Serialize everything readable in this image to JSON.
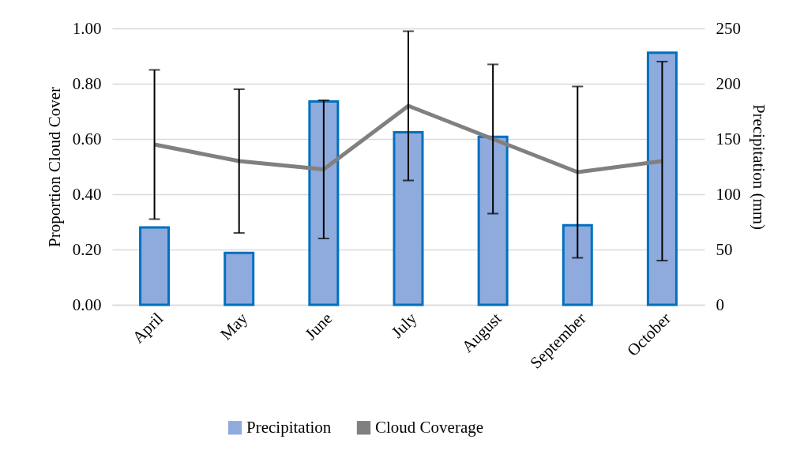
{
  "chart_data": {
    "type": "bar",
    "categories": [
      "April",
      "May",
      "June",
      "July",
      "August",
      "September",
      "October"
    ],
    "series": [
      {
        "name": "Precipitation",
        "axis": "y2",
        "color": "#8faadc",
        "values": [
          70,
          47,
          184,
          156,
          152,
          72,
          228
        ]
      },
      {
        "name": "Cloud Coverage",
        "type": "line",
        "color": "#808080",
        "values": [
          0.58,
          0.52,
          0.49,
          0.72,
          0.6,
          0.48,
          0.52
        ],
        "errors": [
          0.27,
          0.26,
          0.25,
          0.27,
          0.27,
          0.31,
          0.36
        ]
      }
    ],
    "ylabel": "Proportion Cloud Cover",
    "y2label": "Precipitation (mm)",
    "ylim": [
      0,
      1
    ],
    "yticks": [
      {
        "value": 0,
        "label": "0.00"
      },
      {
        "value": 0.2,
        "label": "0.20"
      },
      {
        "value": 0.4,
        "label": "0.40"
      },
      {
        "value": 0.6,
        "label": "0.60"
      },
      {
        "value": 0.8,
        "label": "0.80"
      },
      {
        "value": 1,
        "label": "1.00"
      }
    ],
    "y2lim": [
      0,
      250
    ],
    "y2ticks": [
      0,
      50,
      100,
      150,
      200,
      250
    ],
    "grid": "y",
    "legend": "bottom",
    "marker": "none"
  }
}
